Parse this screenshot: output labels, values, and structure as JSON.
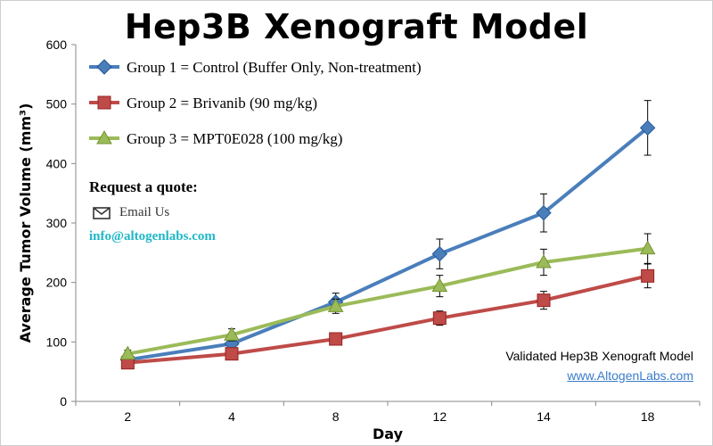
{
  "title": "Hep3B Xenograft Model",
  "quote": {
    "title": "Request a quote:",
    "email_label": "Email Us",
    "email_address": "info@altogenlabs.com",
    "email_icon": "envelope-icon"
  },
  "footer": {
    "validated": "Validated Hep3B Xenograft Model",
    "website": "www.AltogenLabs.com"
  },
  "chart_data": {
    "type": "line",
    "title": "Hep3B Xenograft Model",
    "xlabel": "Day",
    "ylabel": "Average Tumor Volume (mm³)",
    "categories": [
      "2",
      "4",
      "8",
      "12",
      "14",
      "18"
    ],
    "ylim": [
      0,
      600
    ],
    "yticks": [
      0,
      100,
      200,
      300,
      400,
      500,
      600
    ],
    "grid": false,
    "legend_position": "top-left",
    "series": [
      {
        "name": "Group 1 = Control (Buffer Only, Non-treatment)",
        "color": "#4a7ebb",
        "marker": "diamond",
        "values": [
          70,
          97,
          167,
          248,
          317,
          460
        ],
        "errors": [
          8,
          8,
          15,
          25,
          32,
          46
        ]
      },
      {
        "name": "Group 2 = Brivanib (90 mg/kg)",
        "color": "#be4b48",
        "marker": "square",
        "values": [
          65,
          80,
          105,
          140,
          170,
          211
        ],
        "errors": [
          6,
          6,
          7,
          12,
          15,
          20
        ]
      },
      {
        "name": "Group 3 = MPT0E028 (100 mg/kg)",
        "color": "#9bbb59",
        "marker": "triangle",
        "values": [
          80,
          112,
          160,
          194,
          234,
          257
        ],
        "errors": [
          6,
          10,
          12,
          18,
          22,
          25
        ]
      }
    ]
  }
}
